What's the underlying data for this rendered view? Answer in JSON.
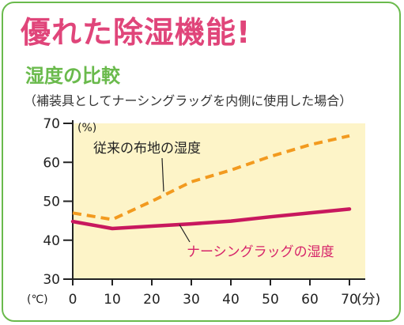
{
  "headline": "優れた除湿機能!",
  "section_title": "湿度の比較",
  "colors": {
    "frame": "#6aba4c",
    "headline": "#e0457a",
    "plot_background": "#fdf4c8",
    "series_nursing_rug": "#c8185e",
    "series_conventional": "#f29a1f"
  },
  "chart_data": {
    "type": "line",
    "subtitle": "（補装具としてナーシングラッグを内側に使用した場合）",
    "ylabel_unit": "(%)",
    "xlabel_unit_left": "(℃)",
    "xlabel_unit_right": "(分)",
    "xlim": [
      0,
      70
    ],
    "ylim": [
      30,
      70
    ],
    "x_ticks": [
      "0",
      "10",
      "20",
      "30",
      "40",
      "50",
      "60",
      "70"
    ],
    "y_ticks": [
      "30",
      "40",
      "50",
      "60",
      "70"
    ],
    "grid": false,
    "series": [
      {
        "name": "従来の布地の湿度",
        "style": "dashed",
        "x": [
          0,
          10,
          20,
          30,
          40,
          50,
          60,
          70
        ],
        "values": [
          47,
          45.3,
          50,
          55,
          58,
          61.5,
          64.5,
          66.8
        ]
      },
      {
        "name": "ナーシングラッグの湿度",
        "style": "solid",
        "x": [
          0,
          10,
          20,
          30,
          40,
          50,
          60,
          70
        ],
        "values": [
          44.8,
          43,
          43.6,
          44.2,
          44.9,
          46,
          47,
          48
        ]
      }
    ]
  }
}
